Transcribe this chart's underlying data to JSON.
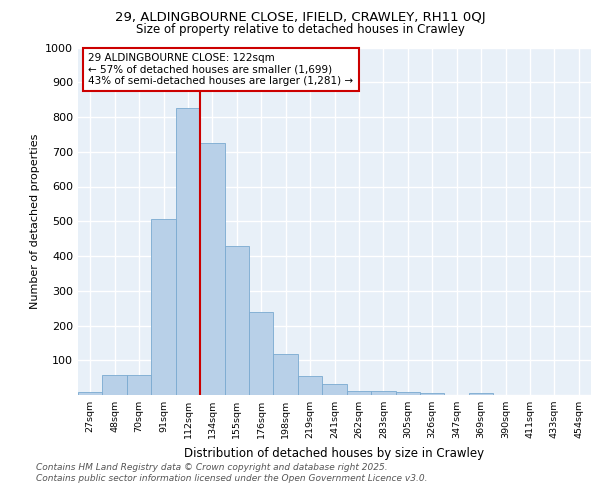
{
  "title1": "29, ALDINGBOURNE CLOSE, IFIELD, CRAWLEY, RH11 0QJ",
  "title2": "Size of property relative to detached houses in Crawley",
  "xlabel": "Distribution of detached houses by size in Crawley",
  "ylabel": "Number of detached properties",
  "categories": [
    "27sqm",
    "48sqm",
    "70sqm",
    "91sqm",
    "112sqm",
    "134sqm",
    "155sqm",
    "176sqm",
    "198sqm",
    "219sqm",
    "241sqm",
    "262sqm",
    "283sqm",
    "305sqm",
    "326sqm",
    "347sqm",
    "369sqm",
    "390sqm",
    "411sqm",
    "433sqm",
    "454sqm"
  ],
  "values": [
    8,
    57,
    57,
    507,
    825,
    725,
    430,
    240,
    118,
    55,
    32,
    12,
    12,
    8,
    5,
    0,
    5,
    0,
    0,
    0,
    0
  ],
  "bar_color": "#b8d0e8",
  "bar_edge_color": "#7aaad0",
  "background_color": "#e8f0f8",
  "grid_color": "#ffffff",
  "vline_color": "#cc0000",
  "annotation_text": "29 ALDINGBOURNE CLOSE: 122sqm\n← 57% of detached houses are smaller (1,699)\n43% of semi-detached houses are larger (1,281) →",
  "annotation_box_color": "#ffffff",
  "annotation_box_edge": "#cc0000",
  "footer1": "Contains HM Land Registry data © Crown copyright and database right 2025.",
  "footer2": "Contains public sector information licensed under the Open Government Licence v3.0.",
  "fig_bg": "#ffffff",
  "ylim": [
    0,
    1000
  ],
  "yticks": [
    0,
    100,
    200,
    300,
    400,
    500,
    600,
    700,
    800,
    900,
    1000
  ],
  "vline_pos": 4.5
}
